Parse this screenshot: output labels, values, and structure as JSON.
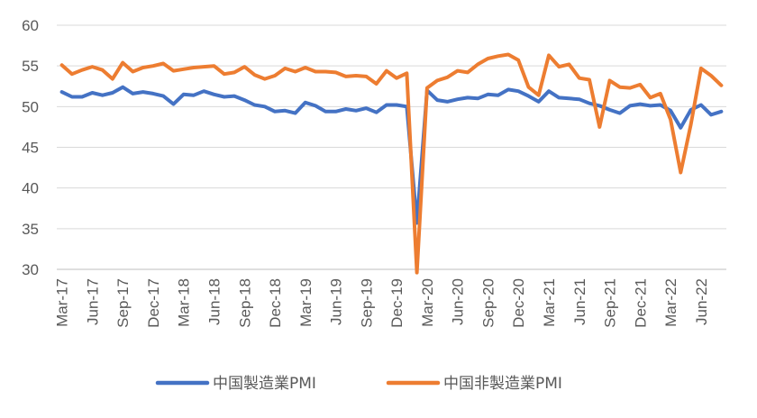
{
  "chart_data": {
    "type": "line",
    "title": "",
    "xlabel": "",
    "ylabel": "",
    "ylim": [
      30,
      60
    ],
    "yticks": [
      30,
      35,
      40,
      45,
      50,
      55,
      60
    ],
    "grid": "horizontal",
    "legend_position": "bottom",
    "x": [
      "Mar-17",
      "Apr-17",
      "May-17",
      "Jun-17",
      "Jul-17",
      "Aug-17",
      "Sep-17",
      "Oct-17",
      "Nov-17",
      "Dec-17",
      "Jan-18",
      "Feb-18",
      "Mar-18",
      "Apr-18",
      "May-18",
      "Jun-18",
      "Jul-18",
      "Aug-18",
      "Sep-18",
      "Oct-18",
      "Nov-18",
      "Dec-18",
      "Jan-19",
      "Feb-19",
      "Mar-19",
      "Apr-19",
      "May-19",
      "Jun-19",
      "Jul-19",
      "Aug-19",
      "Sep-19",
      "Oct-19",
      "Nov-19",
      "Dec-19",
      "Jan-20",
      "Feb-20",
      "Mar-20",
      "Apr-20",
      "May-20",
      "Jun-20",
      "Jul-20",
      "Aug-20",
      "Sep-20",
      "Oct-20",
      "Nov-20",
      "Dec-20",
      "Jan-21",
      "Feb-21",
      "Mar-21",
      "Apr-21",
      "May-21",
      "Jun-21",
      "Jul-21",
      "Aug-21",
      "Sep-21",
      "Oct-21",
      "Nov-21",
      "Dec-21",
      "Jan-22",
      "Feb-22",
      "Mar-22",
      "Apr-22",
      "May-22",
      "Jun-22",
      "Jul-22",
      "Aug-22"
    ],
    "tick_labels": [
      "Mar-17",
      "Jun-17",
      "Sep-17",
      "Dec-17",
      "Mar-18",
      "Jun-18",
      "Sep-18",
      "Dec-18",
      "Mar-19",
      "Jun-19",
      "Sep-19",
      "Dec-19",
      "Mar-20",
      "Jun-20",
      "Sep-20",
      "Dec-20",
      "Mar-21",
      "Jun-21",
      "Sep-21",
      "Dec-21",
      "Mar-22",
      "Jun-22"
    ],
    "series": [
      {
        "name": "中国製造業PMI",
        "color": "#4472C4",
        "values": [
          51.8,
          51.2,
          51.2,
          51.7,
          51.4,
          51.7,
          52.4,
          51.6,
          51.8,
          51.6,
          51.3,
          50.3,
          51.5,
          51.4,
          51.9,
          51.5,
          51.2,
          51.3,
          50.8,
          50.2,
          50.0,
          49.4,
          49.5,
          49.2,
          50.5,
          50.1,
          49.4,
          49.4,
          49.7,
          49.5,
          49.8,
          49.3,
          50.2,
          50.2,
          50.0,
          35.7,
          52.0,
          50.8,
          50.6,
          50.9,
          51.1,
          51.0,
          51.5,
          51.4,
          52.1,
          51.9,
          51.3,
          50.6,
          51.9,
          51.1,
          51.0,
          50.9,
          50.4,
          50.1,
          49.6,
          49.2,
          50.1,
          50.3,
          50.1,
          50.2,
          49.5,
          47.4,
          49.6,
          50.2,
          49.0,
          49.4
        ]
      },
      {
        "name": "中国非製造業PMI",
        "color": "#ED7D31",
        "values": [
          55.1,
          54.0,
          54.5,
          54.9,
          54.5,
          53.4,
          55.4,
          54.3,
          54.8,
          55.0,
          55.3,
          54.4,
          54.6,
          54.8,
          54.9,
          55.0,
          54.0,
          54.2,
          54.9,
          53.9,
          53.4,
          53.8,
          54.7,
          54.3,
          54.8,
          54.3,
          54.3,
          54.2,
          53.7,
          53.8,
          53.7,
          52.8,
          54.4,
          53.5,
          54.1,
          29.6,
          52.3,
          53.2,
          53.6,
          54.4,
          54.2,
          55.2,
          55.9,
          56.2,
          56.4,
          55.7,
          52.4,
          51.4,
          56.3,
          54.9,
          55.2,
          53.5,
          53.3,
          47.5,
          53.2,
          52.4,
          52.3,
          52.7,
          51.1,
          51.6,
          48.4,
          41.9,
          47.8,
          54.7,
          53.8,
          52.6
        ]
      }
    ]
  }
}
